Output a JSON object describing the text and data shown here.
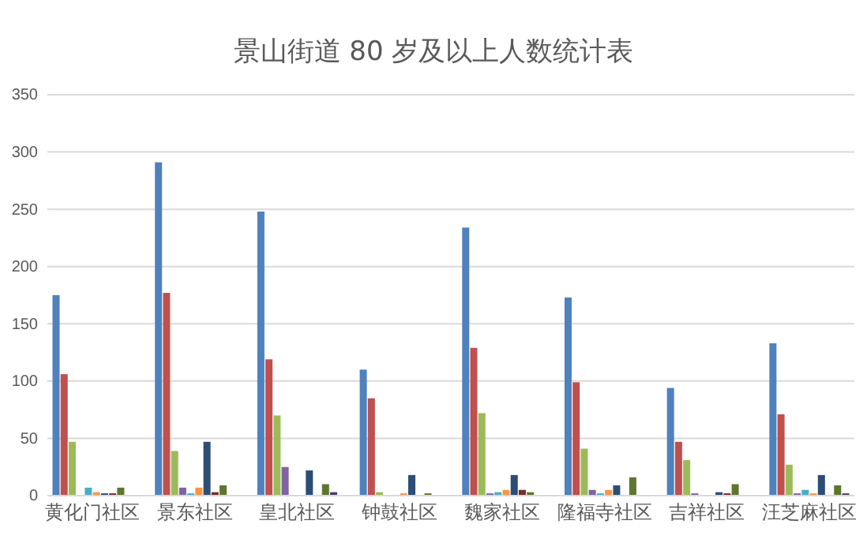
{
  "chart_data": {
    "type": "bar",
    "title": "景山街道 80 岁及以上人数统计表",
    "categories": [
      "黄化门社区",
      "景东社区",
      "皇北社区",
      "钟鼓社区",
      "魏家社区",
      "隆福寺社区",
      "吉祥社区",
      "汪芝麻社区"
    ],
    "series": [
      {
        "color": "#4f81bd",
        "values": [
          175,
          291,
          248,
          110,
          234,
          173,
          94,
          133
        ]
      },
      {
        "color": "#c0504d",
        "values": [
          106,
          177,
          119,
          85,
          129,
          99,
          47,
          71
        ]
      },
      {
        "color": "#9bbb59",
        "values": [
          47,
          39,
          70,
          3,
          72,
          41,
          31,
          27
        ]
      },
      {
        "color": "#8064a2",
        "values": [
          0,
          7,
          25,
          0,
          2,
          5,
          2,
          2
        ]
      },
      {
        "color": "#4bacc6",
        "values": [
          7,
          2,
          0,
          0,
          3,
          2,
          0,
          5
        ]
      },
      {
        "color": "#f79646",
        "values": [
          3,
          7,
          0,
          2,
          5,
          5,
          0,
          2
        ]
      },
      {
        "color": "#2c4d75",
        "values": [
          2,
          47,
          22,
          18,
          18,
          9,
          3,
          18
        ]
      },
      {
        "color": "#772c2a",
        "values": [
          2,
          3,
          0,
          0,
          5,
          0,
          2,
          0
        ]
      },
      {
        "color": "#5f7530",
        "values": [
          7,
          9,
          10,
          2,
          3,
          16,
          10,
          9
        ]
      },
      {
        "color": "#4d3b62",
        "values": [
          0,
          0,
          3,
          0,
          0,
          0,
          0,
          2
        ]
      }
    ],
    "ylim": [
      0,
      350
    ],
    "yticks": [
      0,
      50,
      100,
      150,
      200,
      250,
      300,
      350
    ],
    "grid": "y"
  }
}
